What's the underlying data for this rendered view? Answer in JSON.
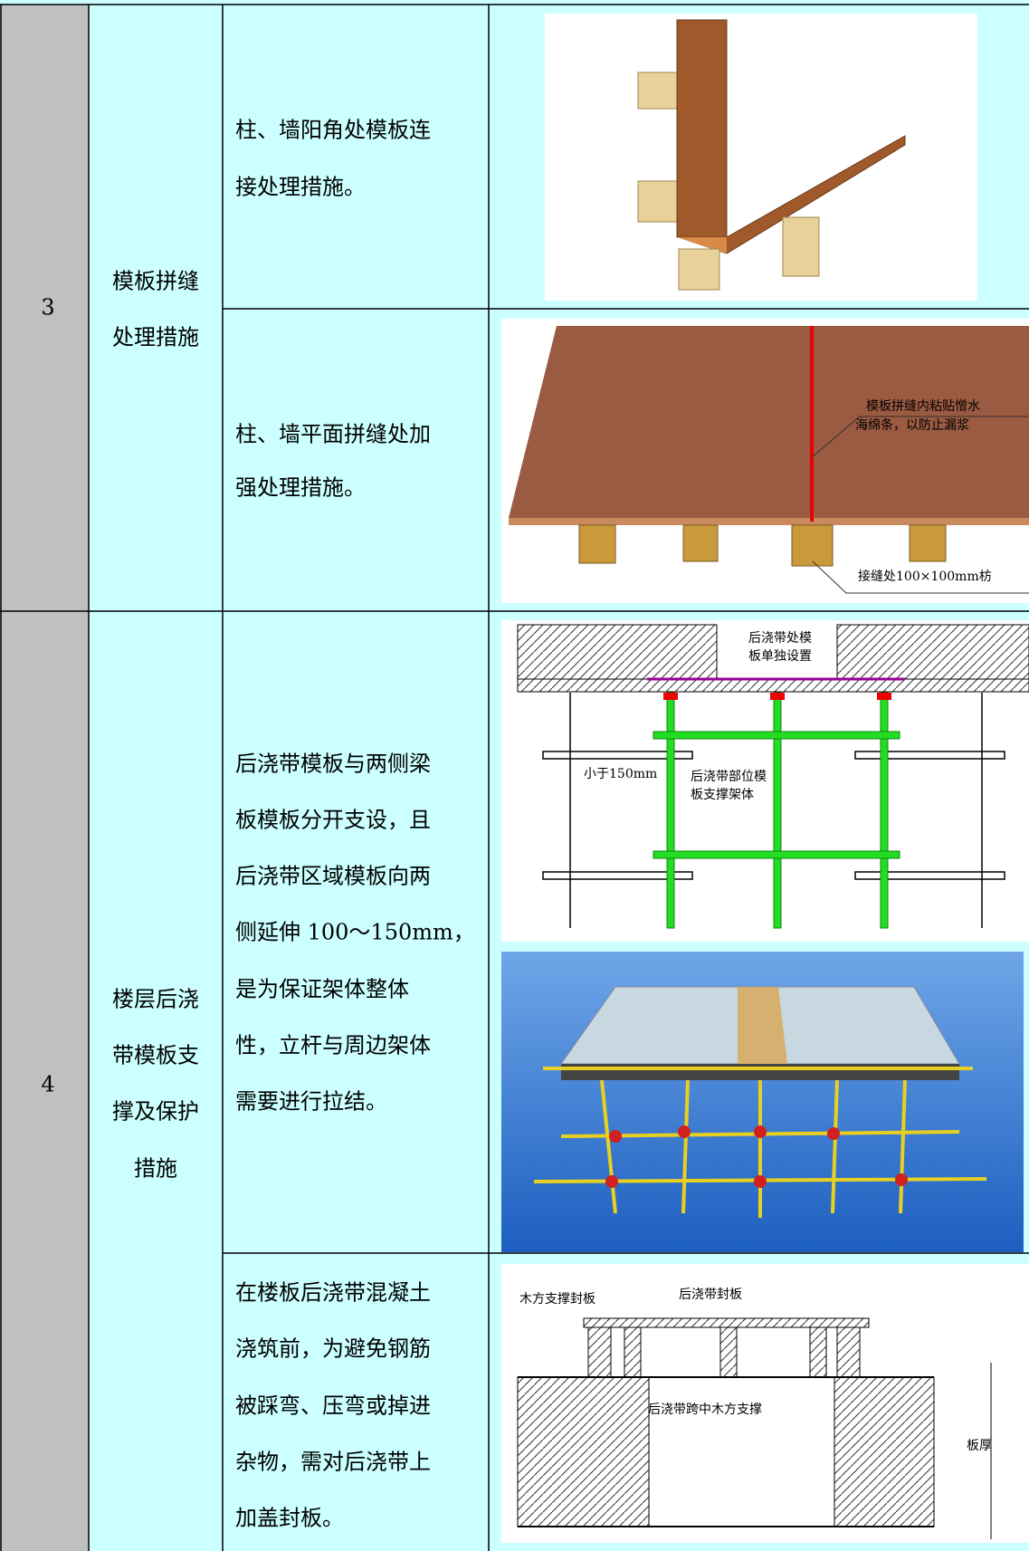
{
  "rows": [
    {
      "number": "3",
      "name": [
        "模板拼缝",
        "处理措施"
      ],
      "items": [
        {
          "description": [
            "柱、墙阳角处模板连",
            "接处理措施。"
          ],
          "figure_labels": []
        },
        {
          "description": [
            "柱、墙平面拼缝处加",
            "强处理措施。"
          ],
          "figure_labels": [
            "模板拼缝内粘贴憎水",
            "海绵条，以防止漏浆",
            "接缝处100×100mm枋"
          ]
        }
      ]
    },
    {
      "number": "4",
      "name": [
        "楼层后浇",
        "带模板支",
        "撑及保护",
        "措施"
      ],
      "items": [
        {
          "description": [
            "后浇带模板与两侧梁",
            "板模板分开支设，且",
            "后浇带区域模板向两",
            "侧延伸 100～150mm，",
            "是为保证架体整体",
            "性，立杆与周边架体",
            "需要进行拉结。"
          ],
          "figure_labels": [
            "后浇带处模",
            "板单独设置",
            "小于150mm",
            "后浇带部位模",
            "板支撑架体"
          ]
        },
        {
          "description": [
            "在楼板后浇带混凝土",
            "浇筑前，为避免钢筋",
            "被踩弯、压弯或掉进",
            "杂物，需对后浇带上",
            "加盖封板。"
          ],
          "figure_labels": [
            "木方支撑封板",
            "后浇带封板",
            "后浇带跨中木方支撑",
            "板厚"
          ]
        }
      ]
    }
  ]
}
